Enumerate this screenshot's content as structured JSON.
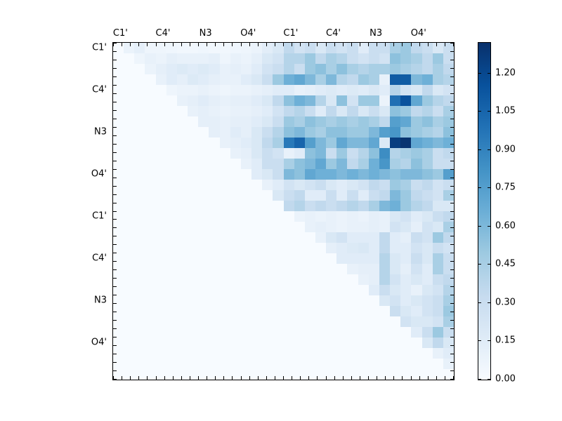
{
  "figure": {
    "background": "#ffffff",
    "frame_color": "#000000"
  },
  "chart_data": {
    "type": "heatmap",
    "title": "",
    "colormap": "Blues",
    "colormap_stops": [
      "#f7fbff",
      "#deebf7",
      "#c6dbef",
      "#9ecae1",
      "#6baed6",
      "#4292c6",
      "#2171b5",
      "#08519c",
      "#08306b"
    ],
    "vmin": 0,
    "vmax": 1.32,
    "grid_size": 32,
    "layout": "upper-triangular",
    "x_tick_labels": [
      "C1'",
      "C4'",
      "N3",
      "O4'",
      "C1'",
      "C4'",
      "N3",
      "O4'"
    ],
    "y_tick_labels": [
      "C1'",
      "C4'",
      "N3",
      "O4'",
      "C1'",
      "C4'",
      "N3",
      "O4'"
    ],
    "label_group_size": 4,
    "ticks_per_side": 41,
    "colorbar_ticks": [
      {
        "label": "0.00",
        "value": 0.0
      },
      {
        "label": "0.15",
        "value": 0.15
      },
      {
        "label": "0.30",
        "value": 0.3
      },
      {
        "label": "0.45",
        "value": 0.45
      },
      {
        "label": "0.60",
        "value": 0.6
      },
      {
        "label": "0.75",
        "value": 0.75
      },
      {
        "label": "0.90",
        "value": 0.9
      },
      {
        "label": "1.05",
        "value": 1.05
      },
      {
        "label": "1.20",
        "value": 1.2
      }
    ],
    "matrix": [
      [
        0,
        0.08,
        0.12,
        0.06,
        0.06,
        0.05,
        0.04,
        0.04,
        0.05,
        0.04,
        0.04,
        0.05,
        0.06,
        0.08,
        0.14,
        0.2,
        0.35,
        0.25,
        0.3,
        0.2,
        0.3,
        0.25,
        0.3,
        0.15,
        0.3,
        0.3,
        0.45,
        0.5,
        0.35,
        0.3,
        0.2,
        0.3
      ],
      [
        0,
        0,
        0.06,
        0.1,
        0.08,
        0.12,
        0.1,
        0.1,
        0.1,
        0.12,
        0.06,
        0.1,
        0.08,
        0.12,
        0.2,
        0.25,
        0.4,
        0.4,
        0.5,
        0.35,
        0.45,
        0.4,
        0.3,
        0.25,
        0.3,
        0.25,
        0.55,
        0.5,
        0.45,
        0.35,
        0.5,
        0.3
      ],
      [
        0,
        0,
        0,
        0.08,
        0.12,
        0.15,
        0.18,
        0.15,
        0.18,
        0.15,
        0.1,
        0.12,
        0.1,
        0.15,
        0.25,
        0.3,
        0.4,
        0.3,
        0.5,
        0.55,
        0.45,
        0.55,
        0.45,
        0.4,
        0.45,
        0.45,
        0.5,
        0.45,
        0.4,
        0.35,
        0.45,
        0.35
      ],
      [
        0,
        0,
        0,
        0,
        0.1,
        0.15,
        0.12,
        0.18,
        0.15,
        0.12,
        0.1,
        0.1,
        0.15,
        0.2,
        0.3,
        0.5,
        0.65,
        0.7,
        0.6,
        0.45,
        0.6,
        0.4,
        0.35,
        0.5,
        0.45,
        0.1,
        1.1,
        1.1,
        0.6,
        0.65,
        0.45,
        0.4
      ],
      [
        0,
        0,
        0,
        0,
        0,
        0.06,
        0.08,
        0.08,
        0.1,
        0.08,
        0.06,
        0.08,
        0.08,
        0.1,
        0.12,
        0.15,
        0.15,
        0.1,
        0.12,
        0.15,
        0.18,
        0.15,
        0.18,
        0.15,
        0.2,
        0.15,
        0.4,
        0.25,
        0.2,
        0.35,
        0.2,
        0.25
      ],
      [
        0,
        0,
        0,
        0,
        0,
        0,
        0.1,
        0.12,
        0.15,
        0.12,
        0.1,
        0.12,
        0.12,
        0.15,
        0.2,
        0.35,
        0.55,
        0.65,
        0.6,
        0.4,
        0.2,
        0.55,
        0.25,
        0.5,
        0.5,
        0.08,
        1.0,
        1.15,
        0.7,
        0.5,
        0.4,
        0.35
      ],
      [
        0,
        0,
        0,
        0,
        0,
        0,
        0,
        0.1,
        0.12,
        0.1,
        0.08,
        0.1,
        0.1,
        0.12,
        0.15,
        0.25,
        0.35,
        0.4,
        0.3,
        0.15,
        0.35,
        0.2,
        0.35,
        0.2,
        0.3,
        0.2,
        0.55,
        0.5,
        0.35,
        0.4,
        0.3,
        0.45
      ],
      [
        0,
        0,
        0,
        0,
        0,
        0,
        0,
        0,
        0.12,
        0.12,
        0.1,
        0.12,
        0.12,
        0.15,
        0.2,
        0.3,
        0.5,
        0.45,
        0.55,
        0.5,
        0.45,
        0.5,
        0.45,
        0.5,
        0.45,
        0.35,
        0.75,
        0.7,
        0.5,
        0.55,
        0.45,
        0.5
      ],
      [
        0,
        0,
        0,
        0,
        0,
        0,
        0,
        0,
        0,
        0.12,
        0.1,
        0.15,
        0.12,
        0.2,
        0.3,
        0.4,
        0.55,
        0.6,
        0.5,
        0.45,
        0.55,
        0.55,
        0.5,
        0.5,
        0.6,
        0.75,
        0.8,
        0.55,
        0.5,
        0.45,
        0.4,
        0.55
      ],
      [
        0,
        0,
        0,
        0,
        0,
        0,
        0,
        0,
        0,
        0,
        0.1,
        0.12,
        0.15,
        0.2,
        0.35,
        0.45,
        0.95,
        1.05,
        0.75,
        0.6,
        0.5,
        0.7,
        0.6,
        0.6,
        0.7,
        0.18,
        1.25,
        1.3,
        0.7,
        0.65,
        0.6,
        0.65
      ],
      [
        0,
        0,
        0,
        0,
        0,
        0,
        0,
        0,
        0,
        0,
        0,
        0.1,
        0.12,
        0.2,
        0.3,
        0.25,
        0.1,
        0.15,
        0.55,
        0.6,
        0.3,
        0.5,
        0.3,
        0.4,
        0.55,
        0.85,
        0.4,
        0.45,
        0.5,
        0.45,
        0.3,
        0.35
      ],
      [
        0,
        0,
        0,
        0,
        0,
        0,
        0,
        0,
        0,
        0,
        0,
        0,
        0.1,
        0.15,
        0.3,
        0.3,
        0.45,
        0.55,
        0.6,
        0.7,
        0.5,
        0.6,
        0.35,
        0.45,
        0.65,
        0.8,
        0.45,
        0.4,
        0.55,
        0.45,
        0.3,
        0.3
      ],
      [
        0,
        0,
        0,
        0,
        0,
        0,
        0,
        0,
        0,
        0,
        0,
        0,
        0,
        0.15,
        0.2,
        0.3,
        0.6,
        0.55,
        0.7,
        0.65,
        0.65,
        0.6,
        0.65,
        0.6,
        0.65,
        0.6,
        0.55,
        0.6,
        0.6,
        0.55,
        0.5,
        0.75
      ],
      [
        0,
        0,
        0,
        0,
        0,
        0,
        0,
        0,
        0,
        0,
        0,
        0,
        0,
        0,
        0.1,
        0.15,
        0.25,
        0.2,
        0.25,
        0.3,
        0.2,
        0.15,
        0.2,
        0.25,
        0.35,
        0.3,
        0.5,
        0.45,
        0.3,
        0.35,
        0.25,
        0.3
      ],
      [
        0,
        0,
        0,
        0,
        0,
        0,
        0,
        0,
        0,
        0,
        0,
        0,
        0,
        0,
        0,
        0.2,
        0.3,
        0.35,
        0.15,
        0.15,
        0.3,
        0.15,
        0.3,
        0.15,
        0.3,
        0.35,
        0.6,
        0.5,
        0.35,
        0.3,
        0.25,
        0.45
      ],
      [
        0,
        0,
        0,
        0,
        0,
        0,
        0,
        0,
        0,
        0,
        0,
        0,
        0,
        0,
        0,
        0,
        0.35,
        0.4,
        0.3,
        0.35,
        0.3,
        0.35,
        0.4,
        0.35,
        0.45,
        0.6,
        0.65,
        0.5,
        0.4,
        0.35,
        0.2,
        0.2
      ],
      [
        0,
        0,
        0,
        0,
        0,
        0,
        0,
        0,
        0,
        0,
        0,
        0,
        0,
        0,
        0,
        0,
        0,
        0.08,
        0.1,
        0.08,
        0.1,
        0.08,
        0.1,
        0.08,
        0.12,
        0.1,
        0.2,
        0.25,
        0.15,
        0.2,
        0.3,
        0.35
      ],
      [
        0,
        0,
        0,
        0,
        0,
        0,
        0,
        0,
        0,
        0,
        0,
        0,
        0,
        0,
        0,
        0,
        0,
        0,
        0.1,
        0.12,
        0.1,
        0.08,
        0.1,
        0.1,
        0.12,
        0.1,
        0.25,
        0.2,
        0.12,
        0.25,
        0.2,
        0.45
      ],
      [
        0,
        0,
        0,
        0,
        0,
        0,
        0,
        0,
        0,
        0,
        0,
        0,
        0,
        0,
        0,
        0,
        0,
        0,
        0,
        0.1,
        0.2,
        0.25,
        0.15,
        0.15,
        0.15,
        0.35,
        0.15,
        0.12,
        0.3,
        0.25,
        0.5,
        0.35
      ],
      [
        0,
        0,
        0,
        0,
        0,
        0,
        0,
        0,
        0,
        0,
        0,
        0,
        0,
        0,
        0,
        0,
        0,
        0,
        0,
        0,
        0.12,
        0.15,
        0.18,
        0.2,
        0.15,
        0.35,
        0.15,
        0.15,
        0.25,
        0.2,
        0.3,
        0.25
      ],
      [
        0,
        0,
        0,
        0,
        0,
        0,
        0,
        0,
        0,
        0,
        0,
        0,
        0,
        0,
        0,
        0,
        0,
        0,
        0,
        0,
        0,
        0.15,
        0.15,
        0.15,
        0.15,
        0.4,
        0.2,
        0.15,
        0.3,
        0.2,
        0.45,
        0.3
      ],
      [
        0,
        0,
        0,
        0,
        0,
        0,
        0,
        0,
        0,
        0,
        0,
        0,
        0,
        0,
        0,
        0,
        0,
        0,
        0,
        0,
        0,
        0,
        0.1,
        0.12,
        0.12,
        0.4,
        0.2,
        0.12,
        0.25,
        0.15,
        0.45,
        0.3
      ],
      [
        0,
        0,
        0,
        0,
        0,
        0,
        0,
        0,
        0,
        0,
        0,
        0,
        0,
        0,
        0,
        0,
        0,
        0,
        0,
        0,
        0,
        0,
        0,
        0.1,
        0.12,
        0.4,
        0.25,
        0.15,
        0.2,
        0.15,
        0.3,
        0.35
      ],
      [
        0,
        0,
        0,
        0,
        0,
        0,
        0,
        0,
        0,
        0,
        0,
        0,
        0,
        0,
        0,
        0,
        0,
        0,
        0,
        0,
        0,
        0,
        0,
        0,
        0.15,
        0.3,
        0.2,
        0.15,
        0.1,
        0.2,
        0.25,
        0.4
      ],
      [
        0,
        0,
        0,
        0,
        0,
        0,
        0,
        0,
        0,
        0,
        0,
        0,
        0,
        0,
        0,
        0,
        0,
        0,
        0,
        0,
        0,
        0,
        0,
        0,
        0,
        0.2,
        0.25,
        0.15,
        0.2,
        0.25,
        0.3,
        0.45
      ],
      [
        0,
        0,
        0,
        0,
        0,
        0,
        0,
        0,
        0,
        0,
        0,
        0,
        0,
        0,
        0,
        0,
        0,
        0,
        0,
        0,
        0,
        0,
        0,
        0,
        0,
        0,
        0.3,
        0.2,
        0.15,
        0.25,
        0.3,
        0.5
      ],
      [
        0,
        0,
        0,
        0,
        0,
        0,
        0,
        0,
        0,
        0,
        0,
        0,
        0,
        0,
        0,
        0,
        0,
        0,
        0,
        0,
        0,
        0,
        0,
        0,
        0,
        0,
        0,
        0.25,
        0.2,
        0.2,
        0.25,
        0.45
      ],
      [
        0,
        0,
        0,
        0,
        0,
        0,
        0,
        0,
        0,
        0,
        0,
        0,
        0,
        0,
        0,
        0,
        0,
        0,
        0,
        0,
        0,
        0,
        0,
        0,
        0,
        0,
        0,
        0,
        0.15,
        0.3,
        0.5,
        0.3
      ],
      [
        0,
        0,
        0,
        0,
        0,
        0,
        0,
        0,
        0,
        0,
        0,
        0,
        0,
        0,
        0,
        0,
        0,
        0,
        0,
        0,
        0,
        0,
        0,
        0,
        0,
        0,
        0,
        0,
        0,
        0.2,
        0.35,
        0.2
      ],
      [
        0,
        0,
        0,
        0,
        0,
        0,
        0,
        0,
        0,
        0,
        0,
        0,
        0,
        0,
        0,
        0,
        0,
        0,
        0,
        0,
        0,
        0,
        0,
        0,
        0,
        0,
        0,
        0,
        0,
        0,
        0.1,
        0.15
      ],
      [
        0,
        0,
        0,
        0,
        0,
        0,
        0,
        0,
        0,
        0,
        0,
        0,
        0,
        0,
        0,
        0,
        0,
        0,
        0,
        0,
        0,
        0,
        0,
        0,
        0,
        0,
        0,
        0,
        0,
        0,
        0,
        0.1
      ],
      [
        0,
        0,
        0,
        0,
        0,
        0,
        0,
        0,
        0,
        0,
        0,
        0,
        0,
        0,
        0,
        0,
        0,
        0,
        0,
        0,
        0,
        0,
        0,
        0,
        0,
        0,
        0,
        0,
        0,
        0,
        0,
        0
      ]
    ]
  }
}
